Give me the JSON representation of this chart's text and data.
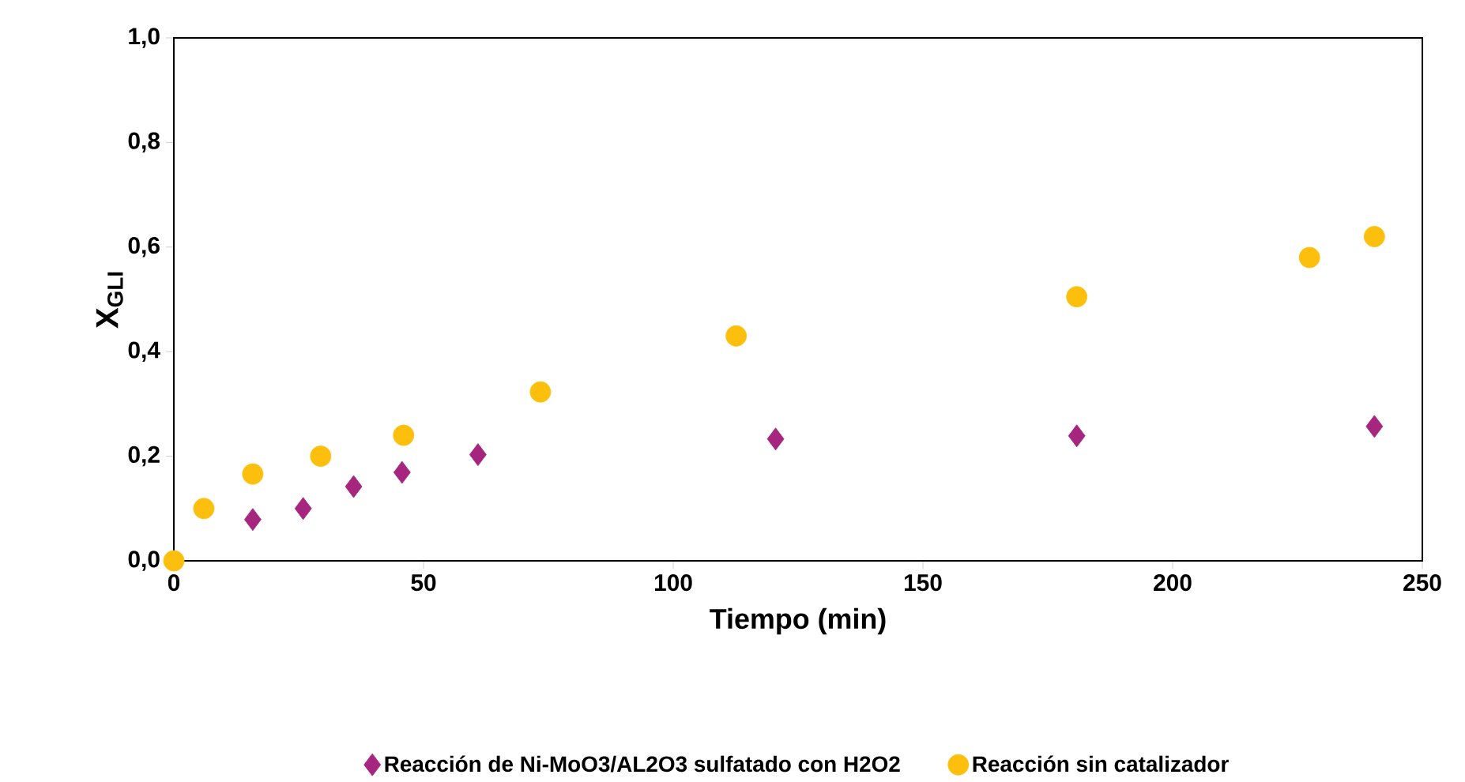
{
  "chart_data": {
    "type": "scatter",
    "xlabel": "Tiempo (min)",
    "ylabel": "X$_{GLI}$",
    "xlim": [
      0,
      250
    ],
    "xticks": [
      0,
      50,
      100,
      150,
      200,
      250
    ],
    "ylim": [
      0,
      1
    ],
    "yticks": [
      {
        "value": 0,
        "label": "0,0"
      },
      {
        "value": 0.2,
        "label": "0,2"
      },
      {
        "value": 0.4,
        "label": "0,4"
      },
      {
        "value": 0.6,
        "label": "0,6"
      },
      {
        "value": 0.8,
        "label": "0,8"
      },
      {
        "value": 1,
        "label": "1,0"
      }
    ],
    "grid": false,
    "legend": "bottom",
    "series": [
      {
        "name": "Reacción de Ni-MoO3/AL2O3 sulfatado con H2O2",
        "color": "#a6267f",
        "marker": "diamond",
        "x": [
          15.8,
          25.9,
          36,
          45.7,
          60.9,
          120.5,
          180.8,
          240.4
        ],
        "values": [
          0.079,
          0.1,
          0.142,
          0.169,
          0.203,
          0.233,
          0.239,
          0.257
        ]
      },
      {
        "name": "Reacción sin catalizador",
        "color": "#fcbf0d",
        "marker": "circle",
        "x": [
          0,
          6,
          15.8,
          29.4,
          46,
          73.4,
          112.6,
          180.8,
          227.4,
          240.4
        ],
        "values": [
          0,
          0.1,
          0.166,
          0.2,
          0.24,
          0.323,
          0.43,
          0.505,
          0.58,
          0.62
        ]
      }
    ]
  }
}
